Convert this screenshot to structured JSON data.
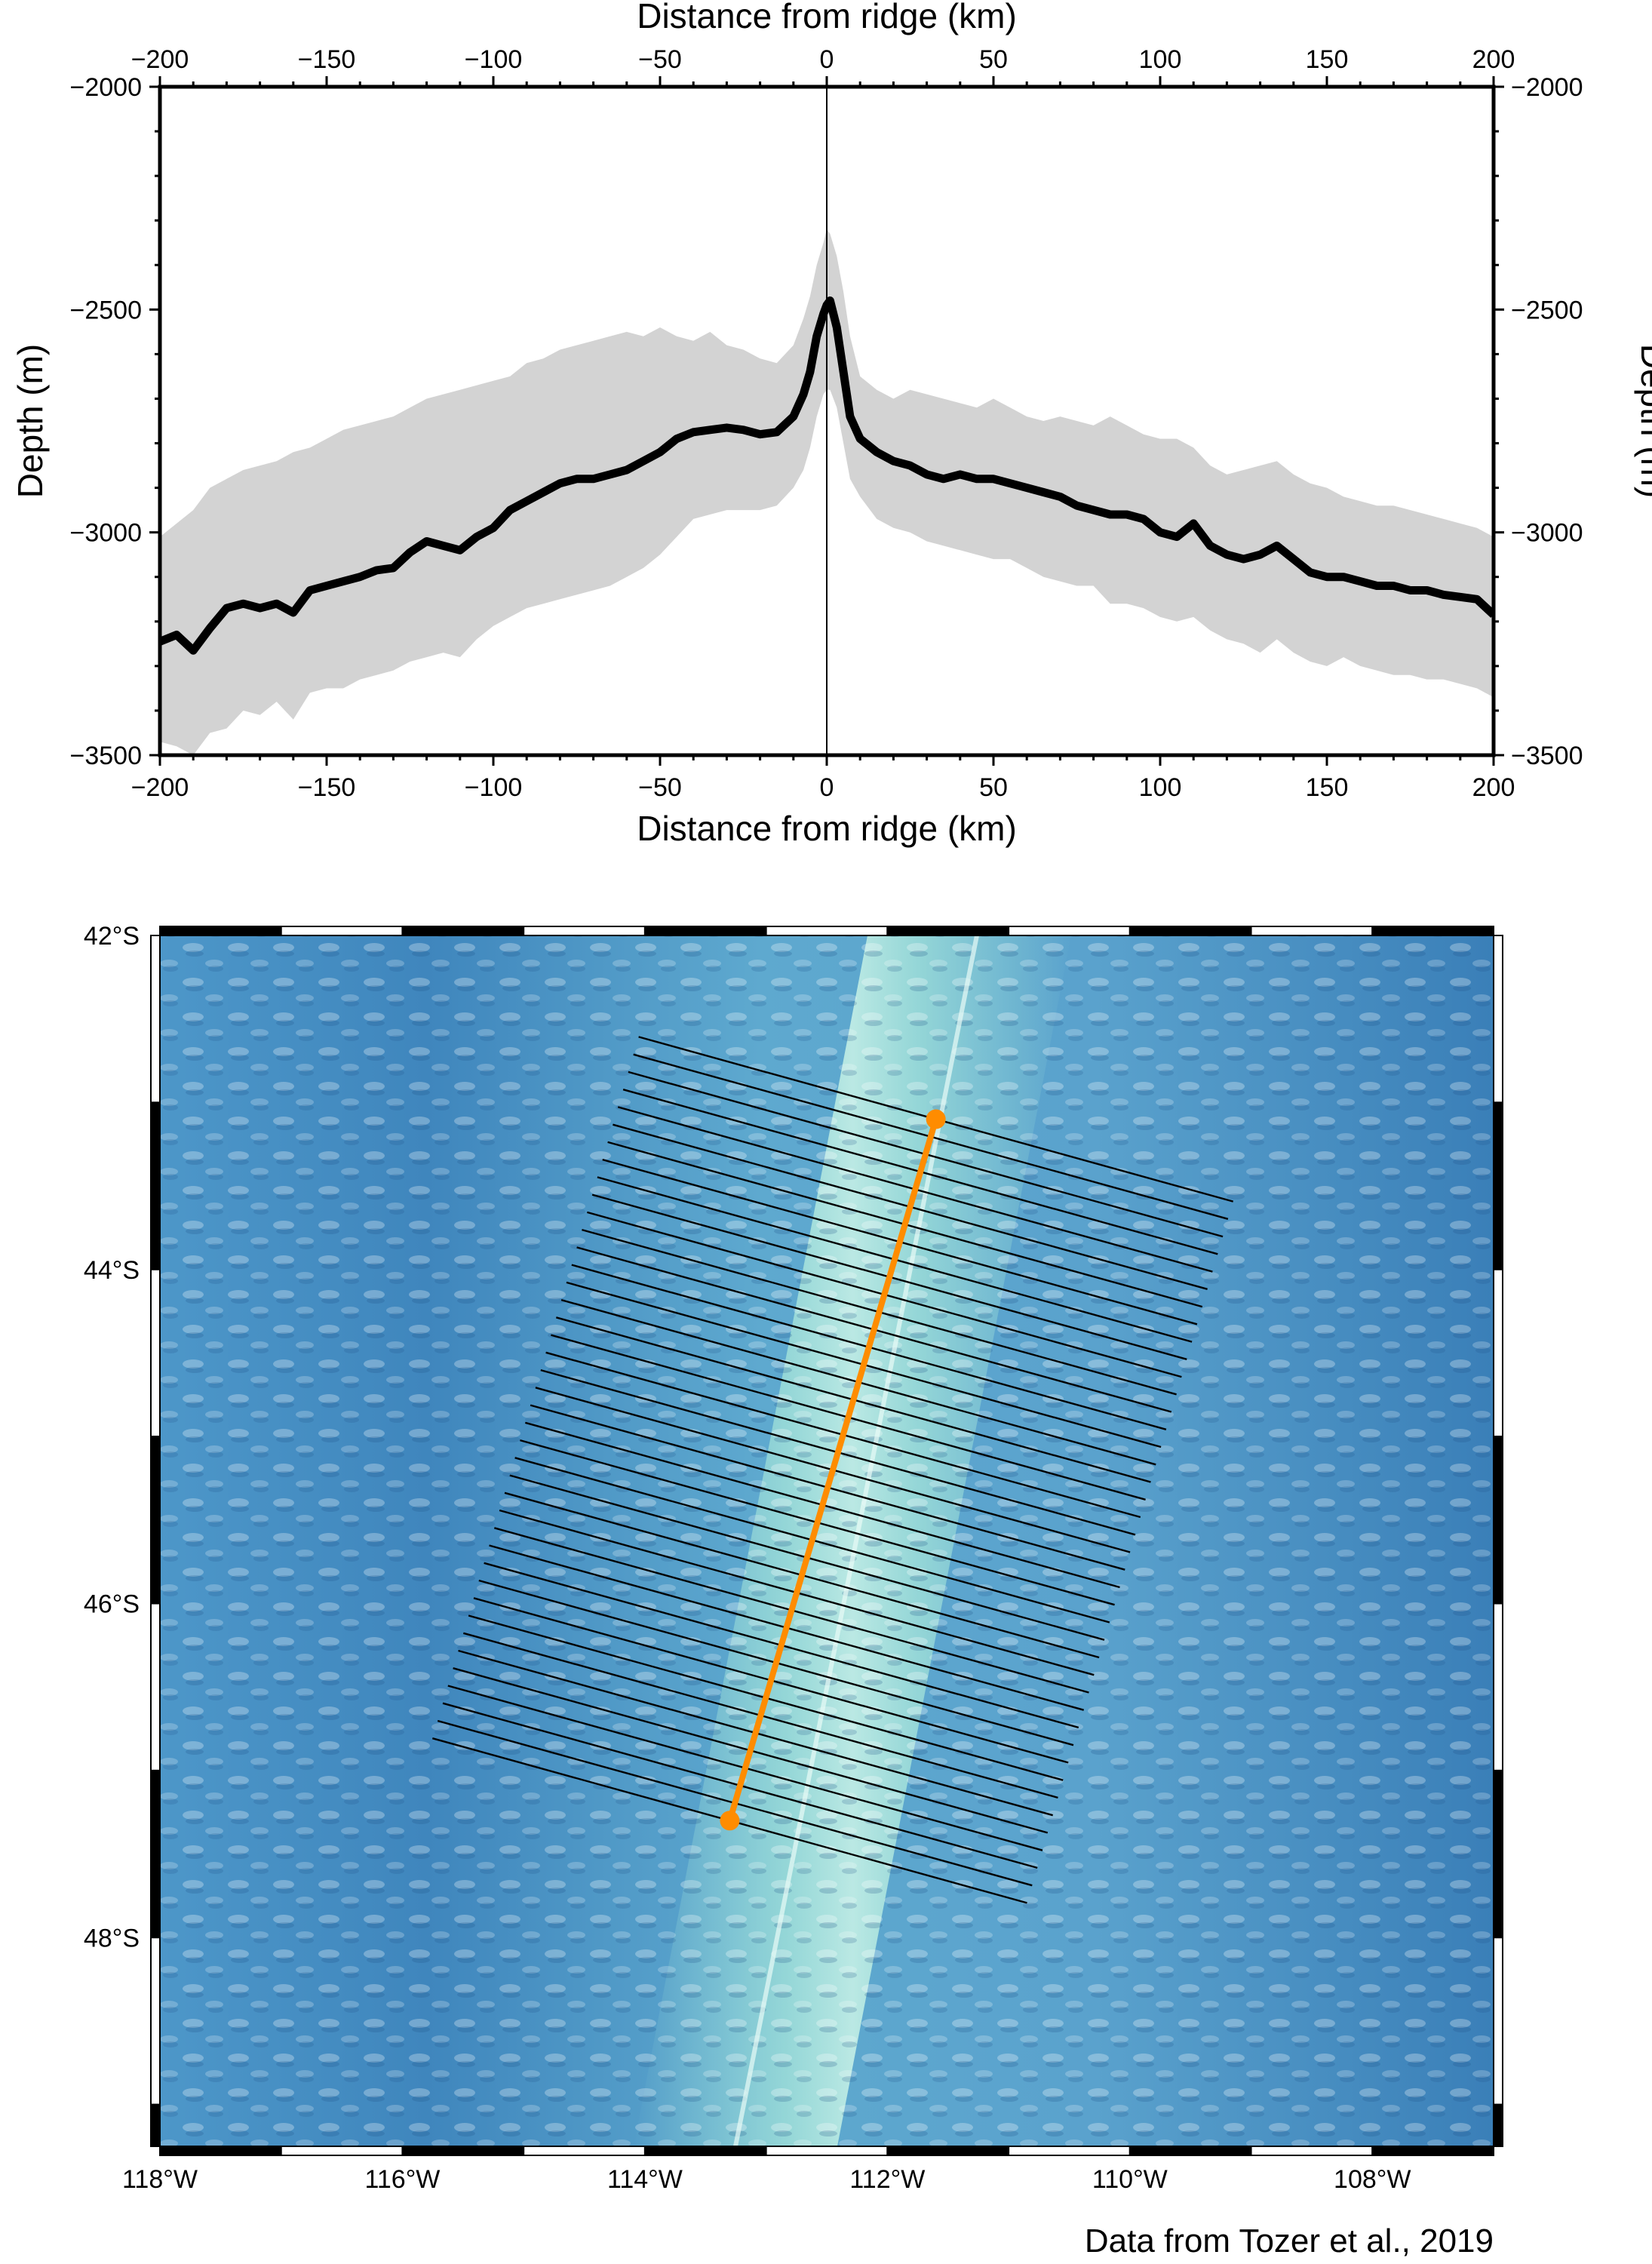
{
  "chart_data": [
    {
      "type": "line",
      "title": "",
      "xlabel": "Distance from ridge (km)",
      "ylabel": "Depth (m)",
      "xlim": [
        -200,
        200
      ],
      "ylim": [
        -3500,
        -2000
      ],
      "x_ticks": [
        "−200",
        "−150",
        "−100",
        "−50",
        "0",
        "50",
        "100",
        "150",
        "200"
      ],
      "y_ticks": [
        "−2000",
        "−2500",
        "−3000",
        "−3500"
      ],
      "grid": false,
      "colors": {
        "line": "#000000",
        "band": "#d3d3d3",
        "ridge_line": "#000000"
      },
      "series": [
        {
          "x": [
            -200,
            -195,
            -190,
            -185,
            -180,
            -175,
            -170,
            -165,
            -160,
            -155,
            -150,
            -145,
            -140,
            -135,
            -130,
            -125,
            -120,
            -115,
            -110,
            -105,
            -100,
            -95,
            -90,
            -85,
            -80,
            -75,
            -70,
            -65,
            -60,
            -55,
            -50,
            -45,
            -40,
            -35,
            -30,
            -25,
            -20,
            -15,
            -10,
            -7,
            -5,
            -3,
            -1,
            0,
            1,
            3,
            5,
            7,
            10,
            15,
            20,
            25,
            30,
            35,
            40,
            45,
            50,
            55,
            60,
            65,
            70,
            75,
            80,
            85,
            90,
            95,
            100,
            105,
            110,
            115,
            120,
            125,
            130,
            135,
            140,
            145,
            150,
            155,
            160,
            165,
            170,
            175,
            180,
            185,
            190,
            195,
            200
          ],
          "values": [
            -3245,
            -3230,
            -3265,
            -3215,
            -3170,
            -3160,
            -3170,
            -3160,
            -3180,
            -3130,
            -3120,
            -3110,
            -3100,
            -3085,
            -3080,
            -3045,
            -3020,
            -3030,
            -3040,
            -3010,
            -2990,
            -2950,
            -2930,
            -2910,
            -2890,
            -2880,
            -2880,
            -2870,
            -2860,
            -2840,
            -2820,
            -2790,
            -2775,
            -2770,
            -2765,
            -2770,
            -2780,
            -2775,
            -2740,
            -2690,
            -2640,
            -2560,
            -2510,
            -2490,
            -2480,
            -2540,
            -2640,
            -2740,
            -2790,
            -2820,
            -2840,
            -2850,
            -2870,
            -2880,
            -2870,
            -2880,
            -2880,
            -2890,
            -2900,
            -2910,
            -2920,
            -2940,
            -2950,
            -2960,
            -2960,
            -2970,
            -3000,
            -3010,
            -2980,
            -3030,
            -3050,
            -3060,
            -3050,
            -3030,
            -3060,
            -3090,
            -3100,
            -3100,
            -3110,
            -3120,
            -3120,
            -3130,
            -3130,
            -3140,
            -3145,
            -3150,
            -3185
          ]
        }
      ],
      "band": {
        "upper": [
          -3010,
          -2980,
          -2950,
          -2900,
          -2880,
          -2860,
          -2850,
          -2840,
          -2820,
          -2810,
          -2790,
          -2770,
          -2760,
          -2750,
          -2740,
          -2720,
          -2700,
          -2690,
          -2680,
          -2670,
          -2660,
          -2650,
          -2620,
          -2610,
          -2590,
          -2580,
          -2570,
          -2560,
          -2550,
          -2560,
          -2540,
          -2560,
          -2570,
          -2550,
          -2580,
          -2590,
          -2610,
          -2620,
          -2580,
          -2520,
          -2470,
          -2400,
          -2350,
          -2320,
          -2330,
          -2380,
          -2460,
          -2560,
          -2650,
          -2680,
          -2700,
          -2680,
          -2690,
          -2700,
          -2710,
          -2720,
          -2700,
          -2720,
          -2740,
          -2750,
          -2740,
          -2750,
          -2760,
          -2740,
          -2760,
          -2780,
          -2790,
          -2790,
          -2810,
          -2850,
          -2870,
          -2860,
          -2850,
          -2840,
          -2870,
          -2890,
          -2900,
          -2920,
          -2930,
          -2940,
          -2940,
          -2950,
          -2960,
          -2970,
          -2980,
          -2990,
          -3010
        ],
        "lower": [
          -3470,
          -3480,
          -3500,
          -3450,
          -3440,
          -3400,
          -3410,
          -3380,
          -3420,
          -3360,
          -3350,
          -3350,
          -3330,
          -3320,
          -3310,
          -3290,
          -3280,
          -3270,
          -3280,
          -3240,
          -3210,
          -3190,
          -3170,
          -3160,
          -3150,
          -3140,
          -3130,
          -3120,
          -3100,
          -3080,
          -3050,
          -3010,
          -2970,
          -2960,
          -2950,
          -2950,
          -2950,
          -2940,
          -2900,
          -2860,
          -2810,
          -2740,
          -2690,
          -2680,
          -2680,
          -2720,
          -2800,
          -2880,
          -2920,
          -2970,
          -2990,
          -3000,
          -3020,
          -3030,
          -3040,
          -3050,
          -3060,
          -3060,
          -3080,
          -3100,
          -3110,
          -3120,
          -3120,
          -3160,
          -3160,
          -3170,
          -3190,
          -3200,
          -3190,
          -3220,
          -3240,
          -3250,
          -3270,
          -3240,
          -3270,
          -3290,
          -3300,
          -3280,
          -3300,
          -3310,
          -3320,
          -3320,
          -3330,
          -3330,
          -3340,
          -3350,
          -3370
        ]
      }
    },
    {
      "type": "map",
      "title": "",
      "lon_range": [
        -118,
        -107
      ],
      "lat_range": [
        -49.25,
        -42
      ],
      "lon_ticks": [
        "118°W",
        "116°W",
        "114°W",
        "112°W",
        "110°W",
        "108°W"
      ],
      "lat_ticks": [
        "42°S",
        "44°S",
        "46°S",
        "48°S"
      ],
      "colors": {
        "ocean_deep": "#2f6fae",
        "ocean_mid": "#4a94c6",
        "ridge": "#8fdcd2",
        "profiles": "#000000",
        "ridge_axis": "#ff8c00"
      },
      "ridge_axis": {
        "start": {
          "lon": -111.6,
          "lat": -43.1
        },
        "end": {
          "lon": -113.3,
          "lat": -47.3
        }
      },
      "profile_count": 41,
      "profile_half_length_km": 200,
      "credit": "Data from Tozer et al., 2019"
    }
  ]
}
